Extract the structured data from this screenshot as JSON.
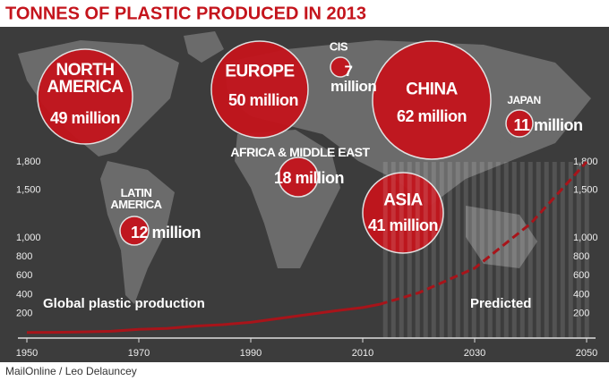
{
  "chart_data": [
    {
      "type": "bubble",
      "title": "TONNES OF PLASTIC PRODUCED IN 2013",
      "color": "#c4141c",
      "categories": [
        "NORTH AMERICA",
        "EUROPE",
        "CIS",
        "CHINA",
        "JAPAN",
        "AFRICA & MIDDLE EAST",
        "ASIA",
        "LATIN AMERICA"
      ],
      "values": [
        49,
        50,
        7,
        62,
        11,
        18,
        41,
        12
      ],
      "value_labels": [
        "49 million",
        "50 million",
        "7 million",
        "62 million",
        "11 million",
        "18 million",
        "41 million",
        "12 million"
      ]
    },
    {
      "type": "line",
      "xlim": [
        1950,
        2050
      ],
      "ylim": [
        0,
        1800
      ],
      "xticks": [
        1950,
        1970,
        1990,
        2010,
        2030,
        2050
      ],
      "yticks": [
        200,
        400,
        600,
        800,
        {
          "value": 1000,
          "label": "1,000"
        },
        {
          "value": 1500,
          "label": "1,500"
        },
        {
          "value": 1800,
          "label": "1,800"
        }
      ],
      "series": [
        {
          "name": "Global plastic production",
          "color": "#a8141a",
          "x": [
            1950,
            1955,
            1960,
            1965,
            1970,
            1975,
            1980,
            1985,
            1990,
            1995,
            2000,
            2005,
            2010,
            2013
          ],
          "values": [
            2,
            4,
            8,
            15,
            35,
            45,
            70,
            85,
            110,
            150,
            190,
            230,
            265,
            299
          ]
        },
        {
          "name": "Predicted",
          "color": "#a8141a",
          "dashed": true,
          "x": [
            2013,
            2020,
            2030,
            2040,
            2050
          ],
          "values": [
            299,
            420,
            680,
            1150,
            1800
          ]
        }
      ]
    }
  ],
  "credit": "MailOnline / Leo Delauncey"
}
